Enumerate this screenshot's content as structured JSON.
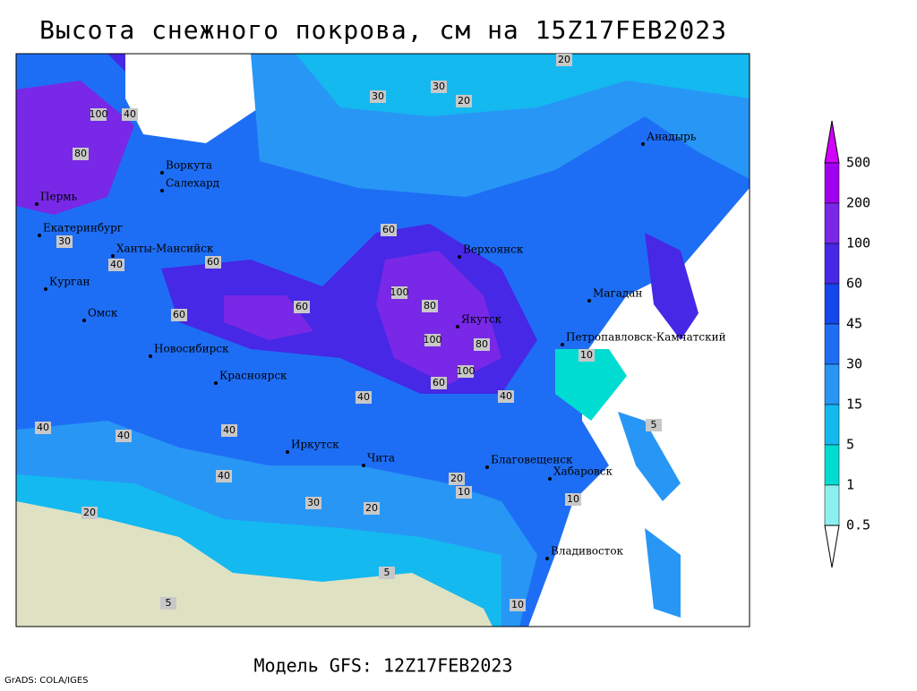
{
  "title": "Высота снежного покрова, см на 15Z17FEB2023",
  "footer": "Модель GFS: 12Z17FEB2023",
  "credit": "GrADS: COLA/IGES",
  "cities": [
    "Воркута",
    "Салехард",
    "Пермь",
    "Екатеринбург",
    "Ханты-Мансийск",
    "Курган",
    "Омск",
    "Новосибирск",
    "Красноярск",
    "Иркутск",
    "Чита",
    "Благовещенск",
    "Хабаровск",
    "Владивосток",
    "Якутск",
    "Верхоянск",
    "Магадан",
    "Анадырь",
    "Петропавловск-Камчатский"
  ],
  "contour_labels": [
    "20",
    "30",
    "20",
    "30",
    "100",
    "80",
    "40",
    "60",
    "40",
    "30",
    "60",
    "100",
    "60",
    "80",
    "100",
    "100",
    "80",
    "60",
    "40",
    "40",
    "40",
    "30",
    "20",
    "20",
    "10",
    "5",
    "5",
    "10",
    "20",
    "10",
    "5",
    "40",
    "60",
    "40",
    "40",
    "10"
  ],
  "legend": {
    "labels": [
      "500",
      "200",
      "100",
      "60",
      "45",
      "30",
      "15",
      "5",
      "1",
      "0.5"
    ],
    "colors": [
      "#d200ff",
      "#a000f0",
      "#7828e6",
      "#4628e6",
      "#1446ee",
      "#1e6ef5",
      "#2896f5",
      "#14b9f0",
      "#00dcd2",
      "#8cf0f0",
      "#ffffff"
    ]
  }
}
